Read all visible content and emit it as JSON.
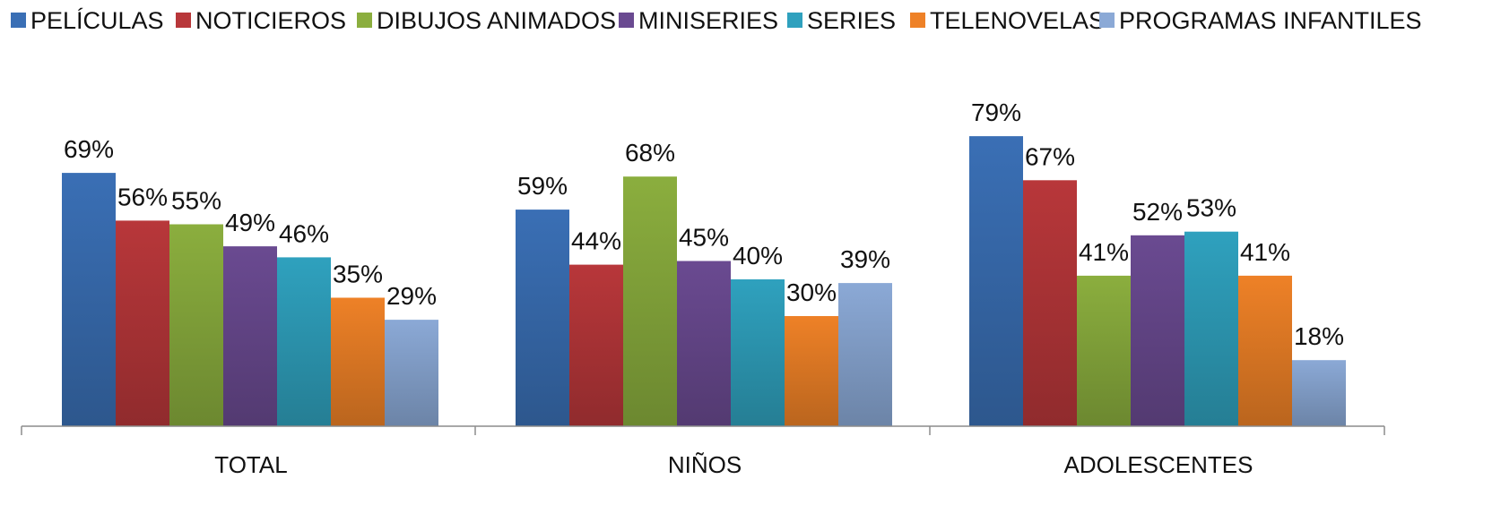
{
  "chart_data": {
    "type": "bar",
    "title": "",
    "xlabel": "",
    "ylabel": "",
    "ylim": [
      0,
      100
    ],
    "grid": false,
    "legend_position": "top",
    "categories": [
      "TOTAL",
      "NIÑOS",
      "ADOLESCENTES"
    ],
    "series": [
      {
        "name": "PELÍCULAS",
        "color": "#3A6FB5",
        "values": [
          69,
          59,
          79
        ],
        "labels": [
          "69%",
          "59%",
          "79%"
        ]
      },
      {
        "name": "NOTICIEROS",
        "color": "#B8373A",
        "values": [
          56,
          44,
          67
        ],
        "labels": [
          "56%",
          "44%",
          "67%"
        ]
      },
      {
        "name": "DIBUJOS ANIMADOS",
        "color": "#8BAE3E",
        "values": [
          55,
          68,
          41
        ],
        "labels": [
          "55%",
          "68%",
          "41%"
        ]
      },
      {
        "name": "MINISERIES",
        "color": "#6A4A91",
        "values": [
          49,
          45,
          52
        ],
        "labels": [
          "49%",
          "45%",
          "52%"
        ]
      },
      {
        "name": "SERIES",
        "color": "#2FA1BE",
        "values": [
          46,
          40,
          53
        ],
        "labels": [
          "46%",
          "40%",
          "53%"
        ]
      },
      {
        "name": "TELENOVELAS",
        "color": "#EE8127",
        "values": [
          35,
          30,
          41
        ],
        "labels": [
          "35%",
          "30%",
          "41%"
        ]
      },
      {
        "name": "PROGRAMAS INFANTILES",
        "color": "#8BA9D6",
        "values": [
          29,
          39,
          18
        ],
        "labels": [
          "29%",
          "39%",
          "18%"
        ]
      }
    ]
  }
}
